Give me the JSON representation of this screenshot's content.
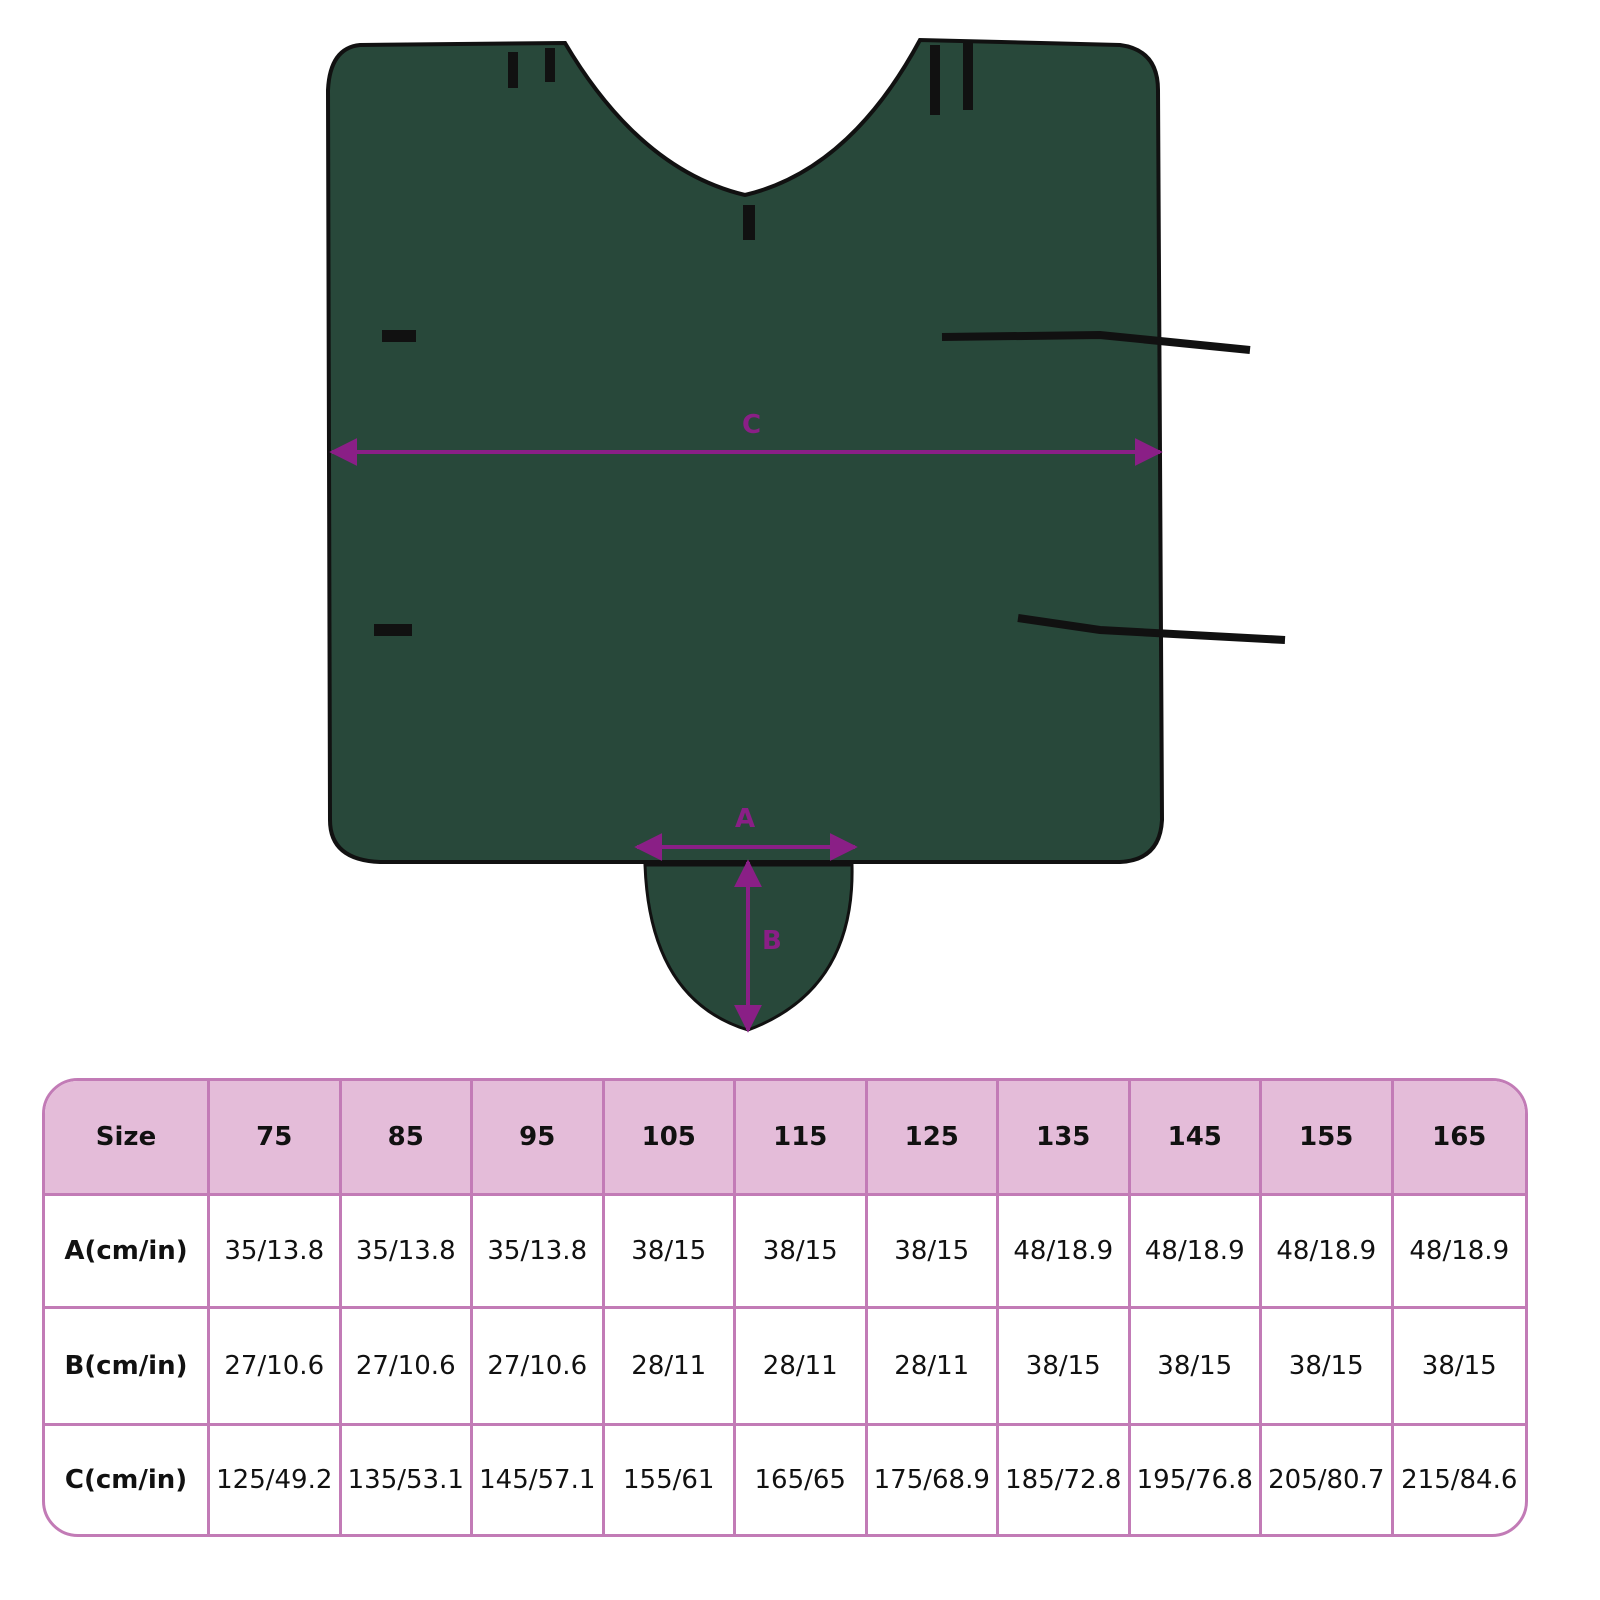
{
  "colors": {
    "fabric": "#28483a",
    "arrow": "#8a1f86",
    "table_header": "#e4bcd9",
    "table_border": "#c27bb6"
  },
  "labels": {
    "a": "A",
    "b": "B",
    "c": "C"
  },
  "table": {
    "header": [
      "Size",
      "75",
      "85",
      "95",
      "105",
      "115",
      "125",
      "135",
      "145",
      "155",
      "165"
    ],
    "rows": [
      {
        "label": "A(cm/in)",
        "values": [
          "35/13.8",
          "35/13.8",
          "35/13.8",
          "38/15",
          "38/15",
          "38/15",
          "48/18.9",
          "48/18.9",
          "48/18.9",
          "48/18.9"
        ]
      },
      {
        "label": "B(cm/in)",
        "values": [
          "27/10.6",
          "27/10.6",
          "27/10.6",
          "28/11",
          "28/11",
          "28/11",
          "38/15",
          "38/15",
          "38/15",
          "38/15"
        ]
      },
      {
        "label": "C(cm/in)",
        "values": [
          "125/49.2",
          "135/53.1",
          "145/57.1",
          "155/61",
          "165/65",
          "175/68.9",
          "185/72.8",
          "195/76.8",
          "205/80.7",
          "215/84.6"
        ]
      }
    ]
  }
}
